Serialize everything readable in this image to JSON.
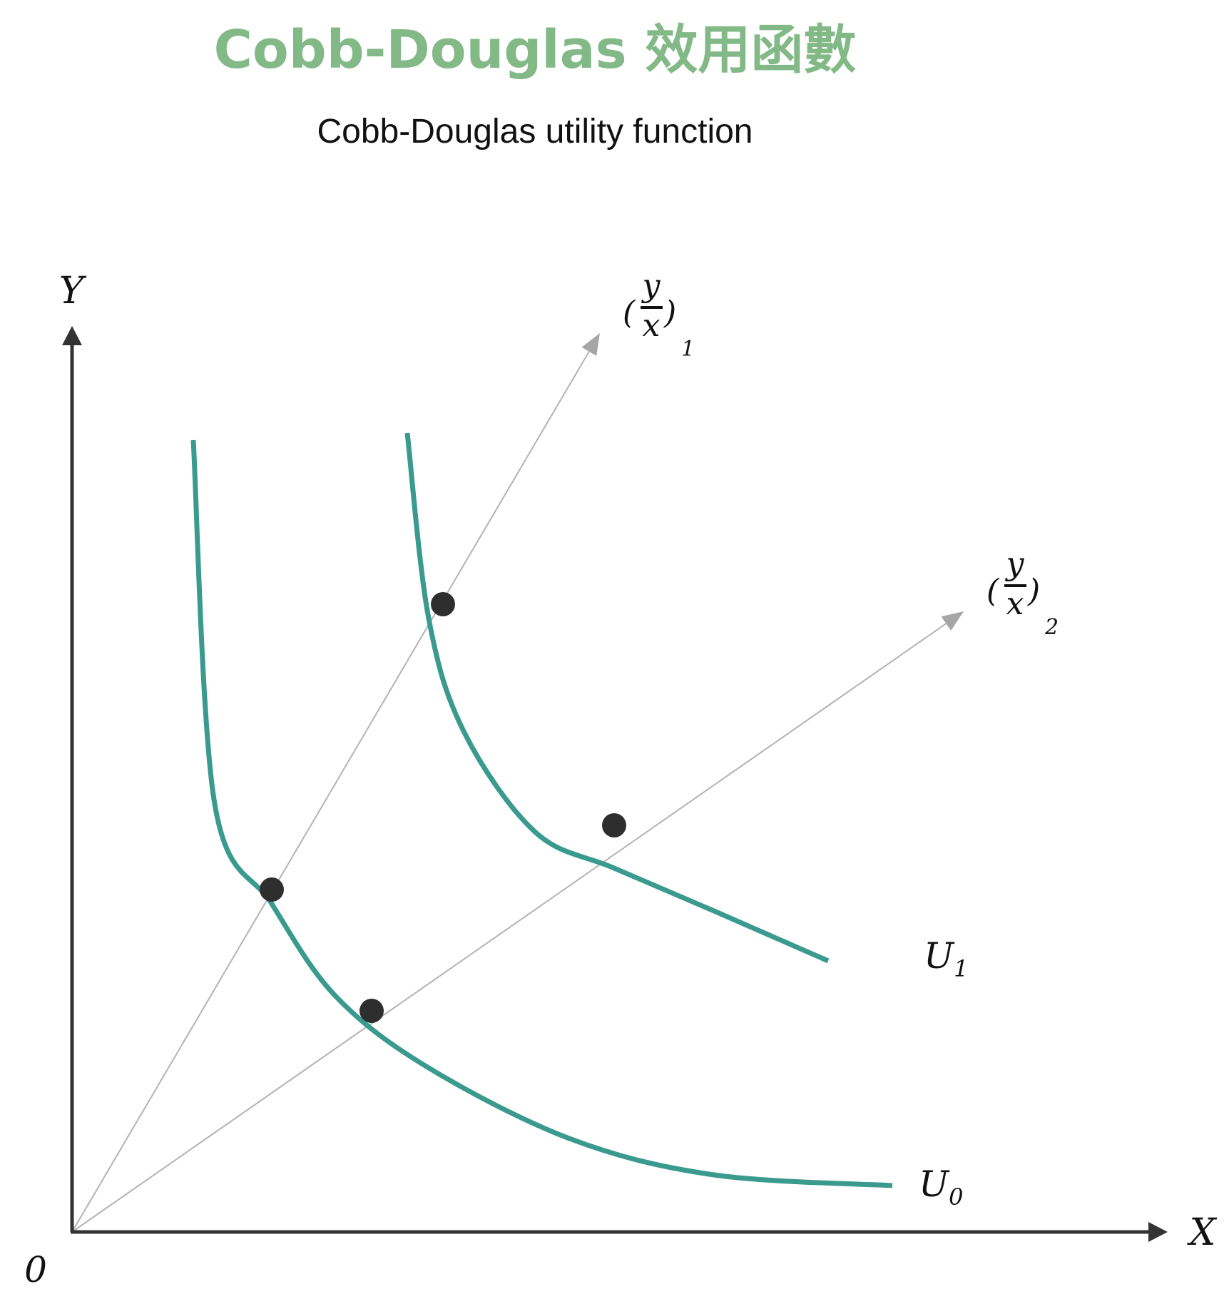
{
  "title": "Cobb-Douglas 效用函數",
  "subtitle": "Cobb-Douglas utility function",
  "axes": {
    "x_label": "X",
    "y_label": "Y",
    "origin_label": "0"
  },
  "curves": [
    {
      "name": "U",
      "subscript": "0",
      "points": [
        [
          1.7,
          11.1
        ],
        [
          2.0,
          6.0
        ],
        [
          2.8,
          4.6
        ],
        [
          3.7,
          3.3
        ],
        [
          5.0,
          2.3
        ],
        [
          7.0,
          1.3
        ],
        [
          9.0,
          0.8
        ],
        [
          11.5,
          0.65
        ]
      ]
    },
    {
      "name": "U",
      "subscript": "1",
      "points": [
        [
          4.7,
          11.2
        ],
        [
          5.0,
          8.6
        ],
        [
          5.5,
          7.0
        ],
        [
          6.5,
          5.6
        ],
        [
          7.6,
          5.1
        ],
        [
          9.0,
          4.5
        ],
        [
          10.6,
          3.8
        ]
      ]
    }
  ],
  "rays": [
    {
      "numerator": "y",
      "denominator": "x",
      "subscript": "1",
      "end": [
        7.4,
        12.6
      ]
    },
    {
      "numerator": "y",
      "denominator": "x",
      "subscript": "2",
      "end": [
        12.5,
        8.7
      ]
    }
  ],
  "points": [
    {
      "x": 2.8,
      "y": 4.8
    },
    {
      "x": 5.2,
      "y": 8.8
    },
    {
      "x": 4.2,
      "y": 3.1
    },
    {
      "x": 7.6,
      "y": 5.7
    }
  ],
  "colors": {
    "title": "#82b987",
    "curve": "#3a9a8e",
    "axis": "#333333",
    "ray": "#b3b3b3",
    "ray_arrow": "#a6a6a6",
    "point": "#2e2e2e",
    "text": "#111111"
  }
}
